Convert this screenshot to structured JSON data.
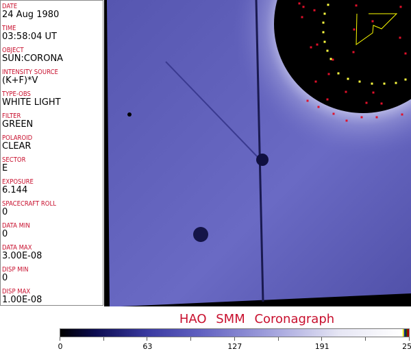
{
  "fields": [
    {
      "label": "DATE",
      "value": "24 Aug 1980"
    },
    {
      "label": "TIME",
      "value": "03:58:04 UT"
    },
    {
      "label": "OBJECT",
      "value": "SUN:CORONA"
    },
    {
      "label": "INTENSITY SOURCE",
      "value": "(K+F)*V"
    },
    {
      "label": "TYPE-OBS",
      "value": "WHITE LIGHT"
    },
    {
      "label": "FILTER",
      "value": "GREEN"
    },
    {
      "label": "POLAROID",
      "value": "CLEAR"
    },
    {
      "label": "SECTOR",
      "value": "E"
    },
    {
      "label": "EXPOSURE",
      "value": "6.144"
    },
    {
      "label": "SPACECRAFT ROLL",
      "value": "0"
    },
    {
      "label": "DATA MIN",
      "value": "0"
    },
    {
      "label": "DATA MAX",
      "value": "3.00E-08"
    },
    {
      "label": "DISP MIN",
      "value": "0"
    },
    {
      "label": "DISP MAX",
      "value": "1.00E-08"
    }
  ],
  "title": "HAO  SMM Coronagraph",
  "colorbar": {
    "ticks": [
      "0",
      "63",
      "127",
      "191",
      "255"
    ]
  },
  "colors": {
    "label": "#c8102e",
    "image_blue": "#5a5ab8"
  }
}
